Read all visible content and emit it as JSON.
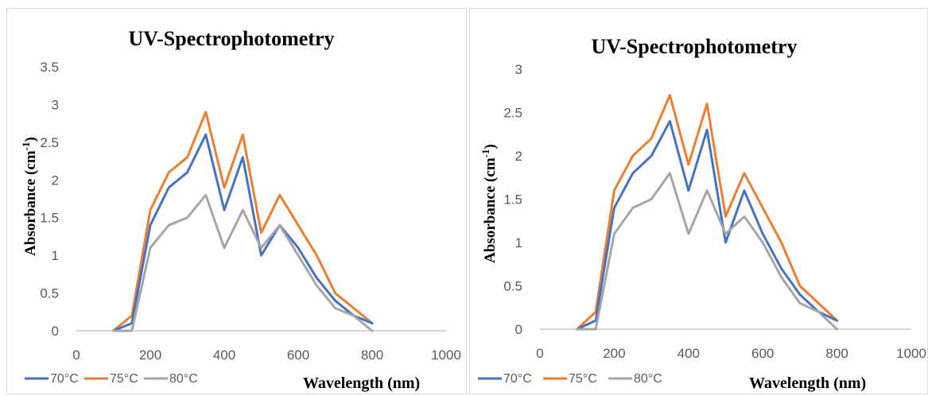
{
  "colors": {
    "70C": "#4472C4",
    "75C": "#ED7D31",
    "80C": "#A5A5A5"
  },
  "chart_data": [
    {
      "type": "line",
      "title": "UV-Spectrophotometry",
      "ylabel_main": "Absorbance (cm",
      "ylabel_sup": "-1",
      "ylabel_close": ")",
      "xlabel": "Wavelength (nm)",
      "xlim": [
        0,
        1000
      ],
      "ylim": [
        0,
        3.5
      ],
      "x_ticks": [
        "0",
        "200",
        "400",
        "600",
        "800",
        "1000"
      ],
      "y_ticks": [
        "0",
        "0.5",
        "1",
        "1.5",
        "2",
        "2.5",
        "3",
        "3.5"
      ],
      "grid": false,
      "legend": "bottom-left",
      "x": [
        100,
        150,
        200,
        250,
        300,
        350,
        400,
        450,
        500,
        550,
        600,
        650,
        700,
        750,
        800
      ],
      "series": [
        {
          "name": "70°C",
          "color": "#4472C4",
          "values": [
            0,
            0.1,
            1.4,
            1.9,
            2.1,
            2.6,
            1.6,
            2.3,
            1.0,
            1.4,
            1.1,
            0.7,
            0.4,
            0.2,
            0.1
          ]
        },
        {
          "name": "75°C",
          "color": "#ED7D31",
          "values": [
            0,
            0.2,
            1.6,
            2.1,
            2.3,
            2.9,
            1.9,
            2.6,
            1.3,
            1.8,
            1.4,
            1.0,
            0.5,
            0.3,
            0.1
          ]
        },
        {
          "name": "80°C",
          "color": "#A5A5A5",
          "values": [
            0,
            0,
            1.1,
            1.4,
            1.5,
            1.8,
            1.1,
            1.6,
            1.1,
            1.4,
            1.0,
            0.6,
            0.3,
            0.2,
            0
          ]
        }
      ]
    },
    {
      "type": "line",
      "title": "UV-Spectrophotometry",
      "ylabel_main": "Absorbance (cm",
      "ylabel_sup": "-1",
      "ylabel_close": ")",
      "xlabel": "Wavelength (nm)",
      "xlim": [
        0,
        1000
      ],
      "ylim": [
        0,
        3
      ],
      "x_ticks": [
        "0",
        "200",
        "400",
        "600",
        "800",
        "1000"
      ],
      "y_ticks": [
        "0",
        "0.5",
        "1",
        "1.5",
        "2",
        "2.5",
        "3"
      ],
      "grid": false,
      "legend": "bottom-left",
      "x": [
        100,
        150,
        200,
        250,
        300,
        350,
        400,
        450,
        500,
        550,
        600,
        650,
        700,
        750,
        800
      ],
      "series": [
        {
          "name": "70°C",
          "color": "#4472C4",
          "values": [
            0,
            0.1,
            1.4,
            1.8,
            2.0,
            2.4,
            1.6,
            2.3,
            1.0,
            1.6,
            1.1,
            0.7,
            0.4,
            0.2,
            0.1
          ]
        },
        {
          "name": "75°C",
          "color": "#ED7D31",
          "values": [
            0,
            0.2,
            1.6,
            2.0,
            2.2,
            2.7,
            1.9,
            2.6,
            1.3,
            1.8,
            1.4,
            1.0,
            0.5,
            0.3,
            0.1
          ]
        },
        {
          "name": "80°C",
          "color": "#A5A5A5",
          "values": [
            0,
            0,
            1.1,
            1.4,
            1.5,
            1.8,
            1.1,
            1.6,
            1.1,
            1.3,
            1.0,
            0.6,
            0.3,
            0.2,
            0
          ]
        }
      ]
    }
  ]
}
